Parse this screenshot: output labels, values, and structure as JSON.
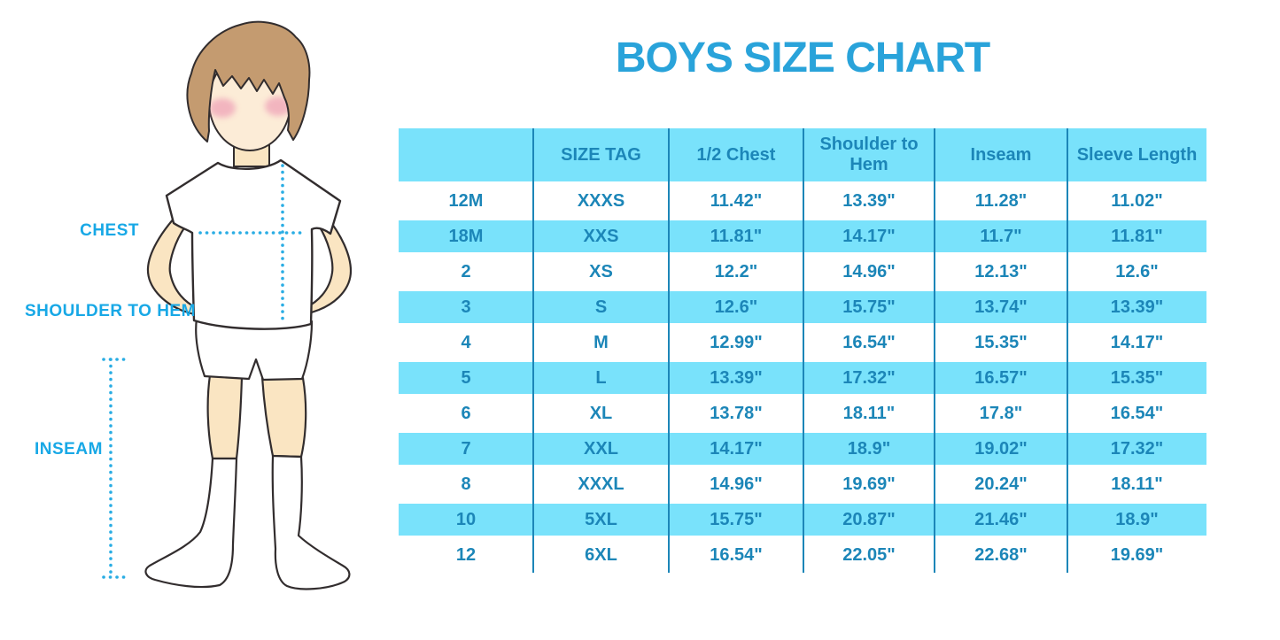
{
  "title": "BOYS SIZE CHART",
  "figure_labels": {
    "chest": "CHEST",
    "shoulder_to_hem": "SHOULDER TO HEM",
    "inseam": "INSEAM"
  },
  "colors": {
    "title": "#29a3da",
    "label_text": "#18a8e6",
    "dotted_line": "#2aade4",
    "band": "#79e2fb",
    "table_text": "#1c86b8",
    "skin": "#fae5c2",
    "face": "#fcecd7",
    "hair": "#c49b70",
    "blush": "#f0a8ba",
    "outline": "#322d2e"
  },
  "chart_data": {
    "type": "table",
    "title": "BOYS SIZE CHART",
    "columns": [
      "",
      "SIZE TAG",
      "1/2 Chest",
      "Shoulder to Hem",
      "Inseam",
      "Sleeve Length"
    ],
    "rows": [
      [
        "12M",
        "XXXS",
        "11.42\"",
        "13.39\"",
        "11.28\"",
        "11.02\""
      ],
      [
        "18M",
        "XXS",
        "11.81\"",
        "14.17\"",
        "11.7\"",
        "11.81\""
      ],
      [
        "2",
        "XS",
        "12.2\"",
        "14.96\"",
        "12.13\"",
        "12.6\""
      ],
      [
        "3",
        "S",
        "12.6\"",
        "15.75\"",
        "13.74\"",
        "13.39\""
      ],
      [
        "4",
        "M",
        "12.99\"",
        "16.54\"",
        "15.35\"",
        "14.17\""
      ],
      [
        "5",
        "L",
        "13.39\"",
        "17.32\"",
        "16.57\"",
        "15.35\""
      ],
      [
        "6",
        "XL",
        "13.78\"",
        "18.11\"",
        "17.8\"",
        "16.54\""
      ],
      [
        "7",
        "XXL",
        "14.17\"",
        "18.9\"",
        "19.02\"",
        "17.32\""
      ],
      [
        "8",
        "XXXL",
        "14.96\"",
        "19.69\"",
        "20.24\"",
        "18.11\""
      ],
      [
        "10",
        "5XL",
        "15.75\"",
        "20.87\"",
        "21.46\"",
        "18.9\""
      ],
      [
        "12",
        "6XL",
        "16.54\"",
        "22.05\"",
        "22.68\"",
        "19.69\""
      ]
    ]
  }
}
